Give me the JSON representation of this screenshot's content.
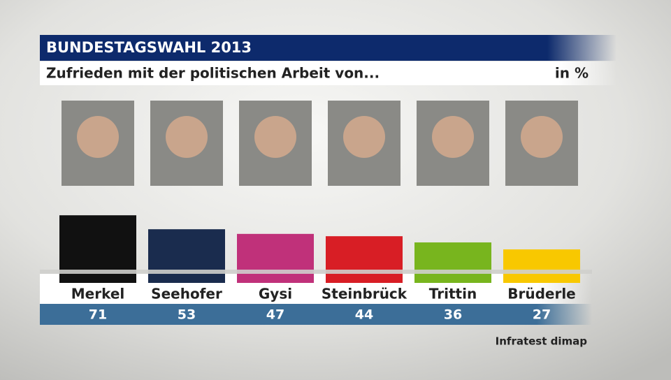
{
  "chart_data": {
    "type": "bar",
    "title": "BUNDESTAGSWAHL 2013",
    "subtitle": "Zufrieden mit der politischen Arbeit von...",
    "unit": "in %",
    "source": "Infratest dimap",
    "categories": [
      "Merkel",
      "Seehofer",
      "Gysi",
      "Steinbrück",
      "Trittin",
      "Brüderle"
    ],
    "values": [
      71,
      53,
      47,
      44,
      36,
      27
    ],
    "colors": [
      "#111111",
      "#1a2c4e",
      "#c0317a",
      "#d81e25",
      "#78b51e",
      "#f8c800"
    ]
  }
}
